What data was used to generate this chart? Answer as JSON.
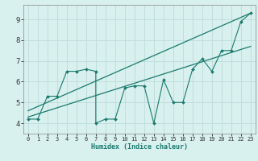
{
  "xlabel": "Humidex (Indice chaleur)",
  "bg_color": "#d8f0ee",
  "grid_color": "#c0dedd",
  "line_color": "#1a7a6e",
  "xlim": [
    -0.5,
    23.5
  ],
  "ylim": [
    3.5,
    9.7
  ],
  "xticks": [
    0,
    1,
    2,
    3,
    4,
    5,
    6,
    7,
    8,
    9,
    10,
    11,
    12,
    13,
    14,
    15,
    16,
    17,
    18,
    19,
    20,
    21,
    22,
    23
  ],
  "yticks": [
    4,
    5,
    6,
    7,
    8,
    9
  ],
  "data_x": [
    0,
    1,
    2,
    3,
    4,
    5,
    6,
    7,
    7,
    8,
    9,
    10,
    11,
    12,
    13,
    14,
    15,
    16,
    17,
    18,
    19,
    20,
    21,
    22,
    23
  ],
  "data_y": [
    4.2,
    4.2,
    5.3,
    5.3,
    6.5,
    6.5,
    6.6,
    6.5,
    4.0,
    4.2,
    4.2,
    5.7,
    5.8,
    5.8,
    4.0,
    6.1,
    5.0,
    5.0,
    6.6,
    7.1,
    6.5,
    7.5,
    7.5,
    8.9,
    9.3
  ],
  "trend1_x": [
    0,
    23
  ],
  "trend1_y": [
    4.3,
    7.7
  ],
  "trend2_x": [
    0,
    23
  ],
  "trend2_y": [
    4.6,
    9.3
  ],
  "xlabel_color": "#1a7a6e",
  "tick_color": "#333333",
  "xlabel_fontsize": 6.0,
  "ytick_fontsize": 6.5,
  "xtick_fontsize": 5.0
}
